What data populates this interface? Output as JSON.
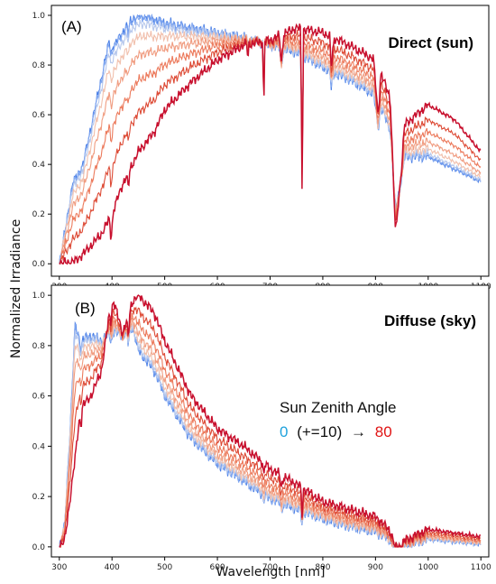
{
  "chart_data": {
    "type": "line",
    "ylabel": "Normalized Irradiance",
    "xlabel": "Wavelength [nm]",
    "x_ticks": [
      300,
      400,
      500,
      600,
      700,
      800,
      900,
      1000,
      1100
    ],
    "y_ticks": [
      0.0,
      0.2,
      0.4,
      0.6,
      0.8,
      1.0
    ],
    "xlim": [
      285,
      1115
    ],
    "shared_x": true,
    "series_colors": [
      "#4a7fe6",
      "#7fa6f0",
      "#b7c8ec",
      "#f1c0ad",
      "#f09c80",
      "#ec7a5c",
      "#dd4a35",
      "#c8102e"
    ],
    "legend": {
      "title": "Sun Zenith Angle",
      "start": "0",
      "step": "(+=10)",
      "arrow": "→",
      "end": "80",
      "start_color": "#1fa2dc",
      "end_color": "#e01414"
    },
    "panels": [
      {
        "label": "(A)",
        "title": "Direct (sun)",
        "ylim": [
          -0.05,
          1.04
        ],
        "low_sza": [
          [
            300,
            0.0
          ],
          [
            310,
            0.12
          ],
          [
            325,
            0.32
          ],
          [
            345,
            0.4
          ],
          [
            360,
            0.55
          ],
          [
            380,
            0.75
          ],
          [
            395,
            0.9
          ],
          [
            405,
            0.88
          ],
          [
            425,
            0.95
          ],
          [
            440,
            0.99
          ],
          [
            460,
            1.0
          ],
          [
            500,
            0.97
          ],
          [
            550,
            0.95
          ],
          [
            600,
            0.93
          ],
          [
            650,
            0.91
          ],
          [
            700,
            0.88
          ],
          [
            750,
            0.85
          ],
          [
            800,
            0.79
          ],
          [
            850,
            0.74
          ],
          [
            900,
            0.68
          ],
          [
            950,
            0.43
          ],
          [
            1000,
            0.43
          ],
          [
            1050,
            0.38
          ],
          [
            1100,
            0.33
          ]
        ],
        "high_sza": [
          [
            300,
            0.0
          ],
          [
            330,
            0.01
          ],
          [
            350,
            0.05
          ],
          [
            380,
            0.12
          ],
          [
            400,
            0.2
          ],
          [
            420,
            0.32
          ],
          [
            450,
            0.45
          ],
          [
            480,
            0.53
          ],
          [
            500,
            0.62
          ],
          [
            550,
            0.73
          ],
          [
            600,
            0.82
          ],
          [
            650,
            0.88
          ],
          [
            700,
            0.9
          ],
          [
            750,
            0.95
          ],
          [
            800,
            0.93
          ],
          [
            850,
            0.88
          ],
          [
            900,
            0.82
          ],
          [
            950,
            0.55
          ],
          [
            1000,
            0.64
          ],
          [
            1050,
            0.58
          ],
          [
            1100,
            0.45
          ]
        ],
        "dips": [
          [
            300,
            302,
            308,
            0
          ],
          [
            395,
            398,
            403,
            0.09
          ],
          [
            428,
            431,
            434,
            0.07
          ],
          [
            656,
            658,
            660,
            0.07
          ],
          [
            686,
            688,
            690,
            0.3
          ],
          [
            718,
            721,
            726,
            0.12
          ],
          [
            758,
            761,
            763,
            0.75
          ],
          [
            813,
            816,
            822,
            0.12
          ],
          [
            896,
            905,
            910,
            0.2
          ],
          [
            928,
            938,
            955,
            0.5
          ]
        ]
      },
      {
        "label": "(B)",
        "title": "Diffuse (sky)",
        "ylim": [
          -0.04,
          1.04
        ],
        "low_sza": [
          [
            300,
            0.0
          ],
          [
            310,
            0.08
          ],
          [
            320,
            0.45
          ],
          [
            330,
            0.88
          ],
          [
            340,
            0.82
          ],
          [
            360,
            0.84
          ],
          [
            380,
            0.82
          ],
          [
            400,
            0.86
          ],
          [
            420,
            0.84
          ],
          [
            440,
            0.87
          ],
          [
            450,
            0.78
          ],
          [
            480,
            0.7
          ],
          [
            500,
            0.6
          ],
          [
            550,
            0.43
          ],
          [
            600,
            0.33
          ],
          [
            650,
            0.26
          ],
          [
            700,
            0.19
          ],
          [
            750,
            0.15
          ],
          [
            800,
            0.11
          ],
          [
            850,
            0.08
          ],
          [
            900,
            0.06
          ],
          [
            950,
            0.0
          ],
          [
            1000,
            0.03
          ],
          [
            1100,
            0.01
          ]
        ],
        "high_sza": [
          [
            300,
            0.0
          ],
          [
            310,
            0.02
          ],
          [
            330,
            0.35
          ],
          [
            340,
            0.55
          ],
          [
            360,
            0.6
          ],
          [
            380,
            0.7
          ],
          [
            400,
            1.0
          ],
          [
            420,
            0.85
          ],
          [
            440,
            0.98
          ],
          [
            450,
            1.0
          ],
          [
            480,
            0.93
          ],
          [
            500,
            0.82
          ],
          [
            550,
            0.6
          ],
          [
            600,
            0.47
          ],
          [
            650,
            0.4
          ],
          [
            700,
            0.31
          ],
          [
            750,
            0.25
          ],
          [
            800,
            0.18
          ],
          [
            850,
            0.15
          ],
          [
            900,
            0.12
          ],
          [
            950,
            0.02
          ],
          [
            1000,
            0.07
          ],
          [
            1100,
            0.04
          ]
        ],
        "dips": [
          [
            338,
            341,
            344,
            0.08
          ],
          [
            395,
            398,
            403,
            0.08
          ],
          [
            428,
            431,
            434,
            0.1
          ],
          [
            686,
            688,
            690,
            0.06
          ],
          [
            718,
            721,
            726,
            0.05
          ],
          [
            758,
            761,
            763,
            0.12
          ],
          [
            928,
            938,
            955,
            0.05
          ]
        ]
      }
    ]
  }
}
